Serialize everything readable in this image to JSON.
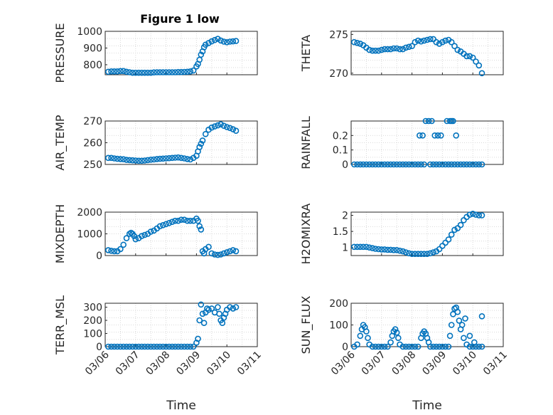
{
  "figure": {
    "title": "Figure 1 low",
    "marker_color": "#0072BD"
  },
  "x_tick_labels": [
    "03/06",
    "03/07",
    "03/08",
    "03/09",
    "03/10",
    "03/11"
  ],
  "chart_data": [
    {
      "id": "pressure",
      "type": "scatter",
      "ylabel": "PRESSURE",
      "ylim": [
        740,
        1000
      ],
      "yticks": [
        800,
        900,
        1000
      ],
      "xlabel": "",
      "grid": true,
      "marker": "o",
      "x": [
        6.1,
        6.2,
        6.3,
        6.4,
        6.5,
        6.6,
        6.7,
        6.8,
        6.9,
        7.0,
        7.1,
        7.2,
        7.3,
        7.4,
        7.5,
        7.6,
        7.7,
        7.8,
        7.9,
        8.0,
        8.1,
        8.2,
        8.3,
        8.4,
        8.5,
        8.6,
        8.7,
        8.8,
        8.9,
        9.0,
        9.05,
        9.1,
        9.15,
        9.2,
        9.25,
        9.3,
        9.4,
        9.5,
        9.6,
        9.7,
        9.8,
        9.9,
        10.0,
        10.1,
        10.2,
        10.3
      ],
      "y": [
        758,
        760,
        760,
        760,
        762,
        762,
        758,
        755,
        752,
        752,
        752,
        752,
        752,
        752,
        752,
        754,
        755,
        755,
        755,
        755,
        755,
        755,
        755,
        756,
        756,
        757,
        758,
        760,
        765,
        790,
        805,
        830,
        860,
        880,
        905,
        920,
        930,
        940,
        948,
        955,
        945,
        938,
        935,
        938,
        940,
        942
      ]
    },
    {
      "id": "theta",
      "type": "scatter",
      "ylabel": "THETA",
      "ylim": [
        269.8,
        275.4
      ],
      "yticks": [
        270,
        275
      ],
      "xlabel": "",
      "grid": true,
      "marker": "o",
      "x": [
        6.1,
        6.2,
        6.3,
        6.4,
        6.5,
        6.6,
        6.7,
        6.8,
        6.9,
        7.0,
        7.1,
        7.2,
        7.3,
        7.4,
        7.5,
        7.6,
        7.7,
        7.8,
        7.9,
        8.0,
        8.1,
        8.2,
        8.3,
        8.4,
        8.5,
        8.6,
        8.7,
        8.8,
        8.9,
        9.0,
        9.1,
        9.2,
        9.3,
        9.4,
        9.5,
        9.6,
        9.7,
        9.8,
        9.9,
        10.0,
        10.1,
        10.2,
        10.3
      ],
      "y": [
        274.0,
        273.9,
        273.8,
        273.6,
        273.3,
        273.0,
        272.9,
        272.9,
        272.9,
        273.0,
        273.1,
        273.1,
        273.1,
        273.2,
        273.2,
        273.1,
        273.1,
        273.3,
        273.4,
        273.5,
        274.0,
        274.2,
        274.1,
        274.2,
        274.3,
        274.4,
        274.4,
        274.0,
        273.8,
        274.0,
        274.2,
        274.3,
        274.0,
        273.5,
        273.0,
        272.8,
        272.5,
        272.2,
        272.2,
        272.0,
        271.5,
        271.0,
        270.0
      ]
    },
    {
      "id": "air_temp",
      "type": "scatter",
      "ylabel": "AIR_TEMP",
      "ylim": [
        250,
        270
      ],
      "yticks": [
        250,
        260,
        270
      ],
      "xlabel": "",
      "grid": true,
      "marker": "o",
      "x": [
        6.1,
        6.2,
        6.3,
        6.4,
        6.5,
        6.6,
        6.7,
        6.8,
        6.9,
        7.0,
        7.1,
        7.2,
        7.3,
        7.4,
        7.5,
        7.6,
        7.7,
        7.8,
        7.9,
        8.0,
        8.1,
        8.2,
        8.3,
        8.4,
        8.5,
        8.6,
        8.7,
        8.8,
        8.9,
        9.0,
        9.05,
        9.1,
        9.15,
        9.2,
        9.3,
        9.4,
        9.5,
        9.6,
        9.7,
        9.8,
        9.9,
        10.0,
        10.1,
        10.2,
        10.3
      ],
      "y": [
        253.0,
        253.0,
        252.8,
        252.6,
        252.5,
        252.4,
        252.1,
        252.0,
        251.9,
        251.8,
        251.7,
        251.7,
        251.8,
        252.0,
        252.2,
        252.3,
        252.5,
        252.6,
        252.7,
        252.8,
        252.9,
        253.0,
        253.1,
        253.2,
        253.0,
        252.8,
        252.5,
        252.3,
        253.0,
        254.0,
        256.0,
        258.0,
        259.5,
        261.0,
        264.0,
        266.0,
        267.0,
        267.5,
        268.0,
        268.5,
        267.8,
        267.2,
        266.8,
        266.2,
        265.5
      ]
    },
    {
      "id": "rainfall",
      "type": "scatter",
      "ylabel": "RAINFALL",
      "ylim": [
        0,
        0.3
      ],
      "yticks": [
        0,
        0.1,
        0.2
      ],
      "xlabel": "",
      "grid": true,
      "marker": "o",
      "x": [
        6.1,
        6.2,
        6.3,
        6.4,
        6.5,
        6.6,
        6.7,
        6.8,
        6.9,
        7.0,
        7.1,
        7.2,
        7.3,
        7.4,
        7.5,
        7.6,
        7.7,
        7.8,
        7.9,
        8.0,
        8.1,
        8.2,
        8.3,
        8.4,
        8.6,
        8.7,
        8.8,
        8.9,
        9.0,
        9.1,
        9.2,
        9.3,
        9.4,
        9.5,
        9.6,
        9.7,
        9.8,
        9.9,
        10.0,
        10.1,
        10.2,
        10.3,
        8.25,
        8.35,
        8.45,
        8.55,
        8.65,
        8.75,
        8.85,
        8.95,
        9.15,
        9.25,
        9.3,
        9.35,
        9.45
      ],
      "y": [
        0,
        0,
        0,
        0,
        0,
        0,
        0,
        0,
        0,
        0,
        0,
        0,
        0,
        0,
        0,
        0,
        0,
        0,
        0,
        0,
        0,
        0,
        0,
        0,
        0,
        0,
        0,
        0,
        0,
        0,
        0,
        0,
        0,
        0,
        0,
        0,
        0,
        0,
        0,
        0,
        0,
        0,
        0.2,
        0.2,
        0.3,
        0.3,
        0.3,
        0.2,
        0.2,
        0.2,
        0.3,
        0.3,
        0.3,
        0.3,
        0.2
      ]
    },
    {
      "id": "mixdepth",
      "type": "scatter",
      "ylabel": "MIXDEPTH",
      "ylim": [
        0,
        2000
      ],
      "yticks": [
        0,
        1000,
        2000
      ],
      "xlabel": "",
      "grid": true,
      "marker": "o",
      "x": [
        6.1,
        6.2,
        6.3,
        6.4,
        6.5,
        6.6,
        6.7,
        6.8,
        6.85,
        6.9,
        6.95,
        7.0,
        7.1,
        7.2,
        7.3,
        7.4,
        7.5,
        7.6,
        7.7,
        7.8,
        7.9,
        8.0,
        8.1,
        8.2,
        8.3,
        8.4,
        8.5,
        8.6,
        8.7,
        8.8,
        8.9,
        9.0,
        9.05,
        9.1,
        9.15,
        9.2,
        9.25,
        9.3,
        9.4,
        9.5,
        9.6,
        9.7,
        9.8,
        9.9,
        10.0,
        10.1,
        10.2,
        10.3
      ],
      "y": [
        250,
        220,
        200,
        200,
        300,
        500,
        800,
        1000,
        1050,
        1000,
        900,
        750,
        800,
        900,
        950,
        1000,
        1100,
        1150,
        1250,
        1350,
        1400,
        1450,
        1500,
        1550,
        1600,
        1600,
        1650,
        1650,
        1600,
        1600,
        1600,
        1700,
        1600,
        1350,
        1200,
        200,
        100,
        300,
        400,
        100,
        50,
        30,
        50,
        100,
        150,
        200,
        250,
        200
      ]
    },
    {
      "id": "h2omixra",
      "type": "scatter",
      "ylabel": "H2OMIXRA",
      "ylim": [
        0.75,
        2.1
      ],
      "yticks": [
        1,
        1.5,
        2
      ],
      "xlabel": "",
      "grid": true,
      "marker": "o",
      "x": [
        6.1,
        6.2,
        6.3,
        6.4,
        6.5,
        6.6,
        6.7,
        6.8,
        6.9,
        7.0,
        7.1,
        7.2,
        7.3,
        7.4,
        7.5,
        7.6,
        7.7,
        7.8,
        7.9,
        8.0,
        8.1,
        8.2,
        8.3,
        8.4,
        8.5,
        8.6,
        8.7,
        8.8,
        8.9,
        9.0,
        9.1,
        9.2,
        9.3,
        9.4,
        9.5,
        9.6,
        9.7,
        9.8,
        9.9,
        10.0,
        10.1,
        10.2,
        10.3
      ],
      "y": [
        1.02,
        1.02,
        1.02,
        1.02,
        1.02,
        1.0,
        0.98,
        0.96,
        0.95,
        0.94,
        0.94,
        0.93,
        0.93,
        0.92,
        0.92,
        0.9,
        0.88,
        0.85,
        0.82,
        0.8,
        0.8,
        0.8,
        0.8,
        0.8,
        0.8,
        0.82,
        0.85,
        0.88,
        0.95,
        1.05,
        1.15,
        1.25,
        1.4,
        1.55,
        1.6,
        1.7,
        1.85,
        1.95,
        2.02,
        2.05,
        2.02,
        2.0,
        2.0
      ]
    },
    {
      "id": "terr_msl",
      "type": "scatter",
      "ylabel": "TERR_MSL",
      "ylim": [
        0,
        330
      ],
      "yticks": [
        0,
        100,
        200,
        300
      ],
      "xlabel": "Time",
      "grid": true,
      "marker": "o",
      "x": [
        6.1,
        6.2,
        6.3,
        6.4,
        6.5,
        6.6,
        6.7,
        6.8,
        6.9,
        7.0,
        7.1,
        7.2,
        7.3,
        7.4,
        7.5,
        7.6,
        7.7,
        7.8,
        7.9,
        8.0,
        8.1,
        8.2,
        8.3,
        8.4,
        8.5,
        8.6,
        8.7,
        8.8,
        8.9,
        9.0,
        9.05,
        9.1,
        9.15,
        9.2,
        9.25,
        9.3,
        9.35,
        9.4,
        9.5,
        9.6,
        9.7,
        9.75,
        9.8,
        9.85,
        9.9,
        9.95,
        10.0,
        10.1,
        10.2,
        10.3
      ],
      "y": [
        0,
        0,
        0,
        0,
        0,
        0,
        0,
        0,
        0,
        0,
        0,
        0,
        0,
        0,
        0,
        0,
        0,
        0,
        0,
        0,
        0,
        0,
        0,
        0,
        0,
        0,
        0,
        0,
        0,
        30,
        60,
        200,
        320,
        250,
        180,
        260,
        290,
        280,
        290,
        260,
        300,
        250,
        200,
        180,
        220,
        250,
        280,
        300,
        290,
        300
      ]
    },
    {
      "id": "sun_flux",
      "type": "scatter",
      "ylabel": "SUN_FLUX",
      "ylim": [
        0,
        200
      ],
      "yticks": [
        0,
        100,
        200
      ],
      "xlabel": "Time",
      "grid": true,
      "marker": "o",
      "x": [
        6.1,
        6.2,
        6.3,
        6.35,
        6.4,
        6.45,
        6.5,
        6.55,
        6.6,
        6.7,
        6.8,
        6.9,
        7.0,
        7.1,
        7.2,
        7.3,
        7.35,
        7.4,
        7.45,
        7.5,
        7.55,
        7.6,
        7.7,
        7.8,
        7.9,
        8.0,
        8.1,
        8.2,
        8.3,
        8.35,
        8.4,
        8.45,
        8.5,
        8.55,
        8.6,
        8.7,
        8.8,
        8.9,
        9.0,
        9.1,
        9.2,
        9.25,
        9.3,
        9.35,
        9.4,
        9.45,
        9.5,
        9.55,
        9.6,
        9.7,
        9.8,
        9.9,
        10.0,
        10.1,
        10.2,
        10.3,
        9.65,
        9.75,
        9.9,
        10.05,
        10.3
      ],
      "y": [
        0,
        10,
        50,
        80,
        100,
        90,
        70,
        40,
        10,
        0,
        0,
        0,
        0,
        0,
        0,
        20,
        50,
        70,
        80,
        65,
        40,
        10,
        0,
        0,
        0,
        0,
        0,
        0,
        40,
        60,
        70,
        60,
        40,
        20,
        0,
        0,
        0,
        0,
        0,
        0,
        0,
        50,
        100,
        150,
        175,
        180,
        160,
        120,
        80,
        40,
        10,
        0,
        0,
        0,
        0,
        0,
        100,
        130,
        50,
        20,
        140
      ]
    }
  ]
}
